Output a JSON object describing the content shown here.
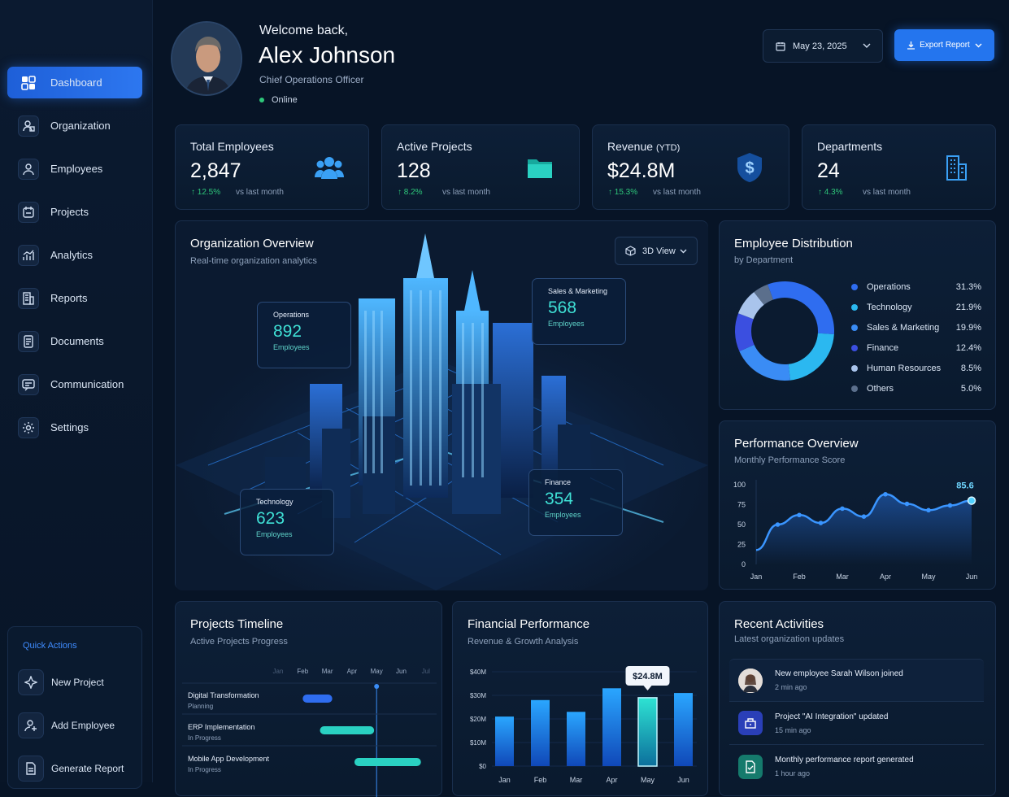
{
  "sidebar": {
    "items": [
      {
        "label": "Dashboard",
        "icon": "dashboard-icon",
        "active": true
      },
      {
        "label": "Organization",
        "icon": "organization-icon"
      },
      {
        "label": "Employees",
        "icon": "employees-icon"
      },
      {
        "label": "Projects",
        "icon": "projects-icon"
      },
      {
        "label": "Analytics",
        "icon": "analytics-icon"
      },
      {
        "label": "Reports",
        "icon": "reports-icon"
      },
      {
        "label": "Documents",
        "icon": "documents-icon"
      },
      {
        "label": "Communication",
        "icon": "communication-icon"
      },
      {
        "label": "Settings",
        "icon": "settings-icon"
      }
    ],
    "quick_actions": {
      "title": "Quick Actions",
      "items": [
        {
          "label": "New Project",
          "icon": "sparkle-icon"
        },
        {
          "label": "Add Employee",
          "icon": "add-user-icon"
        },
        {
          "label": "Generate Report",
          "icon": "report-icon"
        }
      ]
    }
  },
  "header": {
    "welcome": "Welcome back,",
    "name": "Alex Johnson",
    "role": "Chief Operations Officer",
    "status": "Online",
    "date": "May 23, 2025",
    "export_label": "Export Report"
  },
  "stats": [
    {
      "label": "Total Employees",
      "value": "2,847",
      "change": "12.5%",
      "note": "vs last month",
      "icon": "users-icon"
    },
    {
      "label": "Active Projects",
      "value": "128",
      "change": "8.2%",
      "note": "vs last month",
      "icon": "folder-icon"
    },
    {
      "label": "Revenue",
      "label_suffix": "(YTD)",
      "value": "$24.8M",
      "change": "15.3%",
      "note": "vs last month",
      "icon": "dollar-icon"
    },
    {
      "label": "Departments",
      "value": "24",
      "change": "4.3%",
      "note": "vs last month",
      "icon": "building-icon"
    }
  ],
  "org_overview": {
    "title": "Organization Overview",
    "subtitle": "Real-time organization analytics",
    "view_label": "3D View",
    "tags": [
      {
        "name": "Operations",
        "value": "892",
        "unit": "Employees"
      },
      {
        "name": "Sales & Marketing",
        "value": "568",
        "unit": "Employees"
      },
      {
        "name": "Technology",
        "value": "623",
        "unit": "Employees"
      },
      {
        "name": "Finance",
        "value": "354",
        "unit": "Employees"
      }
    ]
  },
  "distribution": {
    "title": "Employee Distribution",
    "subtitle": "by Department",
    "colors": [
      "#2f6df0",
      "#2bb8f0",
      "#3a8cf5",
      "#3b4fe0",
      "#a9c4ec",
      "#5b6f8c"
    ],
    "chart_data": {
      "type": "pie",
      "categories": [
        "Operations",
        "Technology",
        "Sales & Marketing",
        "Finance",
        "Human Resources",
        "Others"
      ],
      "values": [
        31.3,
        21.9,
        19.9,
        12.4,
        8.5,
        5.0
      ],
      "labels": [
        "31.3%",
        "21.9%",
        "19.9%",
        "12.4%",
        "8.5%",
        "5.0%"
      ]
    }
  },
  "performance": {
    "title": "Performance Overview",
    "subtitle": "Monthly Performance Score",
    "highlight": "85.6",
    "chart_data": {
      "type": "line",
      "x": [
        "Jan",
        "Feb",
        "Mar",
        "Apr",
        "May",
        "Jun"
      ],
      "yticks": [
        "0",
        "25",
        "50",
        "75",
        "100"
      ],
      "ylim": [
        0,
        100
      ],
      "points": [
        [
          0,
          18
        ],
        [
          0.5,
          50
        ],
        [
          1,
          62
        ],
        [
          1.5,
          52
        ],
        [
          2,
          70
        ],
        [
          2.5,
          60
        ],
        [
          3,
          88
        ],
        [
          3.5,
          76
        ],
        [
          4,
          68
        ],
        [
          4.5,
          74
        ],
        [
          5,
          80
        ]
      ]
    }
  },
  "timeline": {
    "title": "Projects Timeline",
    "subtitle": "Active Projects Progress",
    "months": [
      "Jan",
      "Feb",
      "Mar",
      "Apr",
      "May",
      "Jun",
      "Jul"
    ],
    "projects": [
      {
        "name": "Digital Transformation",
        "status": "Planning",
        "start": 1.0,
        "end": 2.2,
        "color": "#2f6df0"
      },
      {
        "name": "ERP Implementation",
        "status": "In Progress",
        "start": 1.7,
        "end": 3.9,
        "color": "#2ad1c2"
      },
      {
        "name": "Mobile App Development",
        "status": "In Progress",
        "start": 3.1,
        "end": 5.8,
        "color": "#2ad1c2"
      }
    ],
    "marker": 4.0
  },
  "financial": {
    "title": "Financial Performance",
    "subtitle": "Revenue & Growth Analysis",
    "callout": "$24.8M",
    "chart_data": {
      "type": "bar",
      "categories": [
        "Jan",
        "Feb",
        "Mar",
        "Apr",
        "May",
        "Jun"
      ],
      "values": [
        21,
        28,
        23,
        33,
        29,
        31
      ],
      "yticks": [
        "$0",
        "$10M",
        "$20M",
        "$30M",
        "$40M"
      ],
      "ylim": [
        0,
        40
      ]
    }
  },
  "activities": {
    "title": "Recent Activities",
    "subtitle": "Latest organization updates",
    "items": [
      {
        "text": "New employee Sarah Wilson joined",
        "time": "2 min ago",
        "icon": "person-avatar-icon"
      },
      {
        "text": "Project \"AI Integration\" updated",
        "time": "15 min ago",
        "icon": "project-update-icon"
      },
      {
        "text": "Monthly performance report generated",
        "time": "1 hour ago",
        "icon": "report-doc-icon"
      }
    ]
  }
}
